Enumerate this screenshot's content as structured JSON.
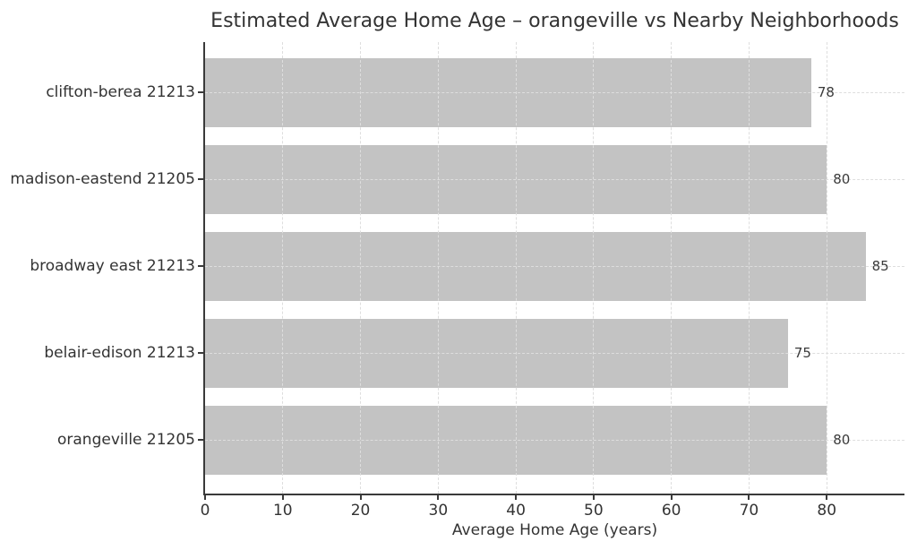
{
  "chart_data": {
    "type": "bar",
    "orientation": "horizontal",
    "order": "top-to-bottom",
    "title": "Estimated Average Home Age – orangeville vs Nearby Neighborhoods",
    "xlabel": "Average Home Age (years)",
    "ylabel": "",
    "categories": [
      "clifton-berea 21213",
      "madison-eastend 21205",
      "broadway east 21213",
      "belair-edison 21213",
      "orangeville 21205"
    ],
    "values": [
      78,
      80,
      85,
      75,
      80
    ],
    "value_labels": [
      "78",
      "80",
      "85",
      "75",
      "80"
    ],
    "xticks": [
      0,
      10,
      20,
      30,
      40,
      50,
      60,
      70,
      80
    ],
    "xlim": [
      0,
      90
    ],
    "grid": true,
    "legend": false,
    "colors": {
      "bar": "#c3c3c3",
      "grid": "#dedede",
      "spine": "#3a3a3a",
      "text": "#333333",
      "value_label": "#3a3a3a"
    }
  }
}
